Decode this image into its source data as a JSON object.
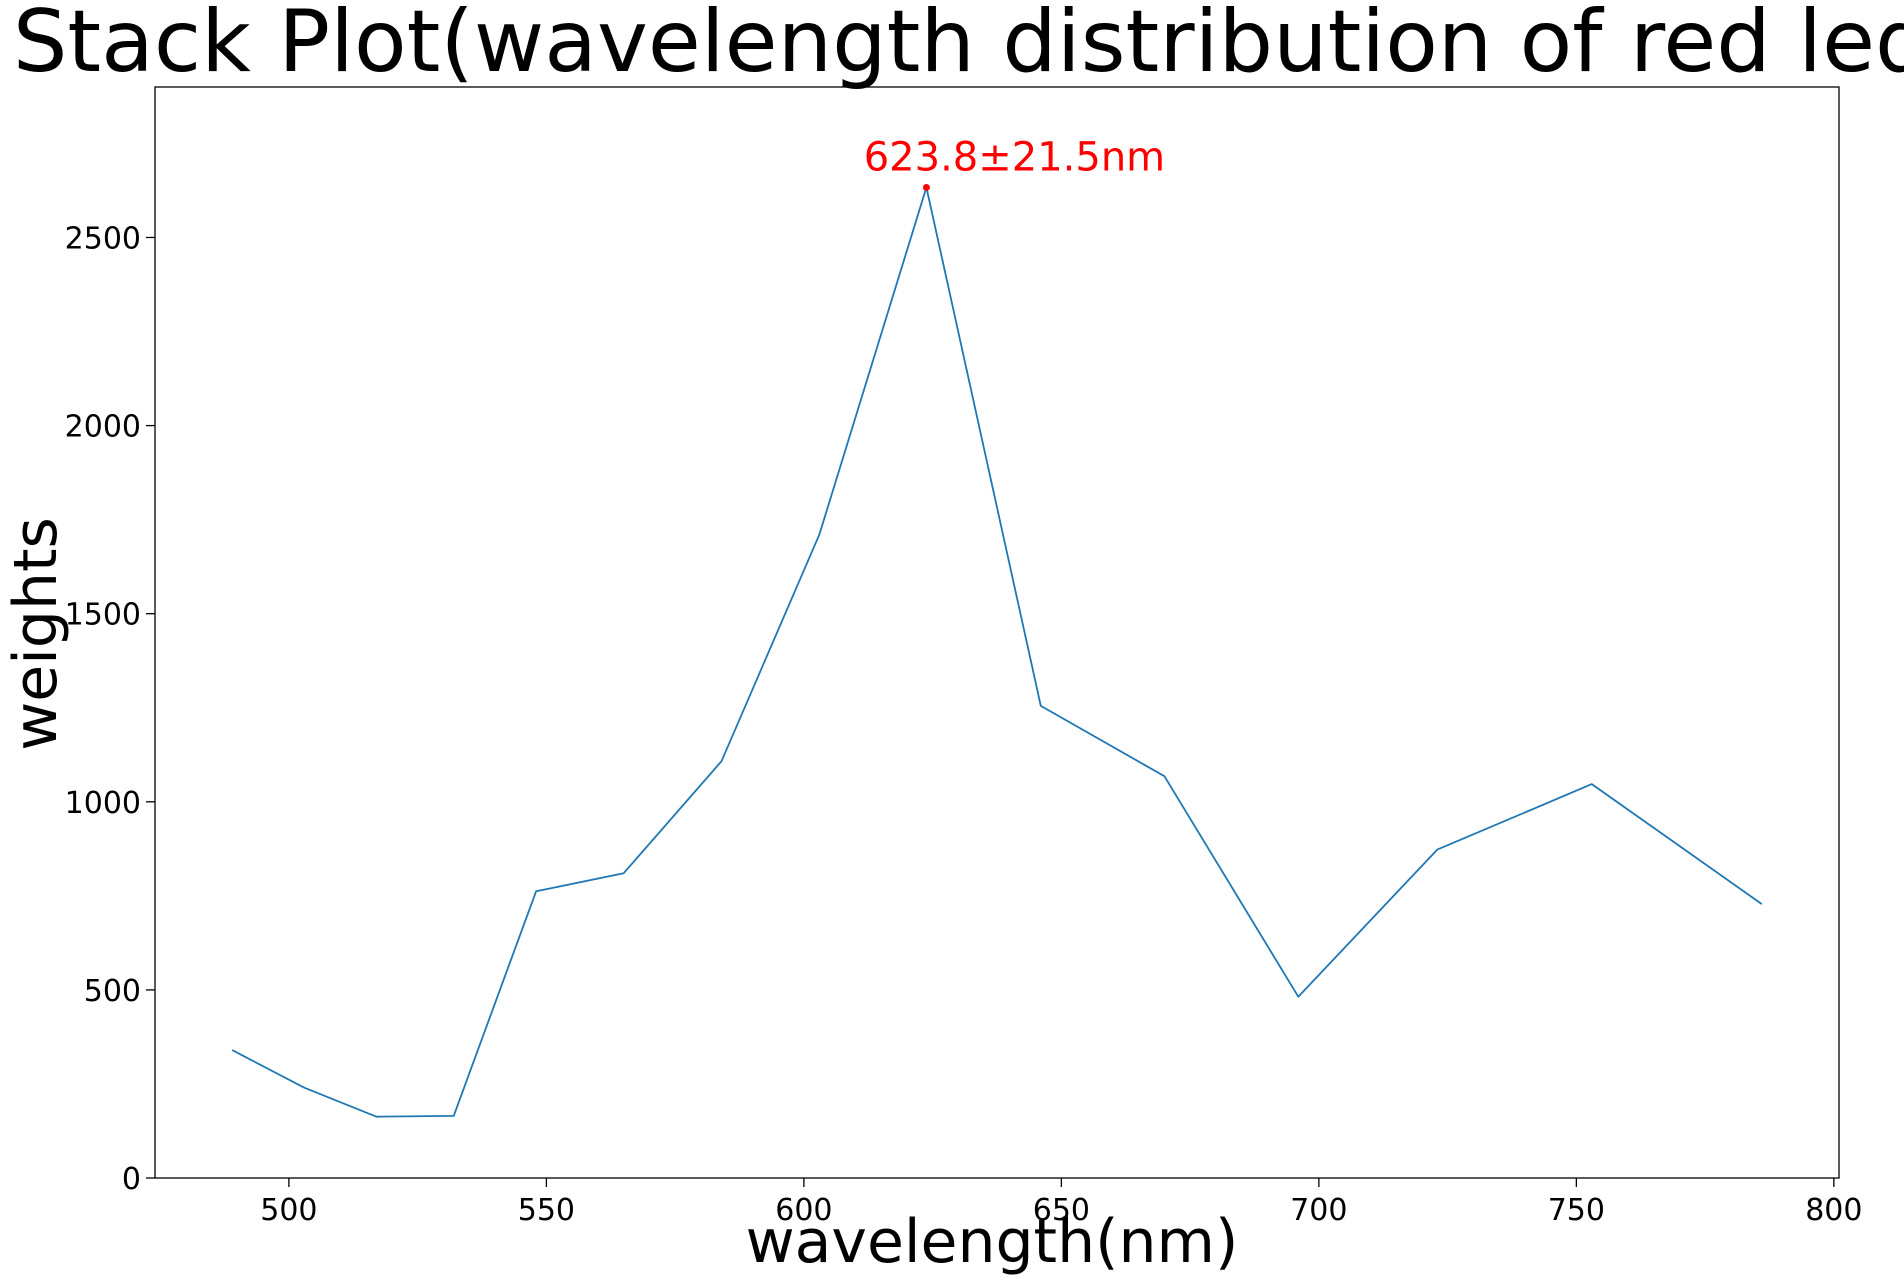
{
  "chart_data": {
    "type": "line",
    "title": "Stack Plot(wavelength distribution of red led)",
    "xlabel": "wavelength(nm)",
    "ylabel": "weights",
    "xlim": [
      474,
      801
    ],
    "ylim": [
      0,
      2900
    ],
    "xticks": [
      500,
      550,
      600,
      650,
      700,
      750,
      800
    ],
    "yticks": [
      0,
      500,
      1000,
      1500,
      2000,
      2500
    ],
    "grid": false,
    "legend": "none",
    "series": [
      {
        "color": "#1f77b4",
        "x": [
          489,
          503,
          517,
          532,
          548,
          565,
          584,
          603,
          623.8,
          646,
          670,
          696,
          723,
          753,
          786
        ],
        "y": [
          340,
          240,
          163,
          165,
          762,
          810,
          1108,
          1710,
          2633,
          1255,
          1068,
          482,
          873,
          1047,
          728
        ]
      }
    ],
    "annotation": {
      "text": "623.8±21.5nm",
      "x": 623.8,
      "y": 2633,
      "color": "#ff0000"
    }
  }
}
